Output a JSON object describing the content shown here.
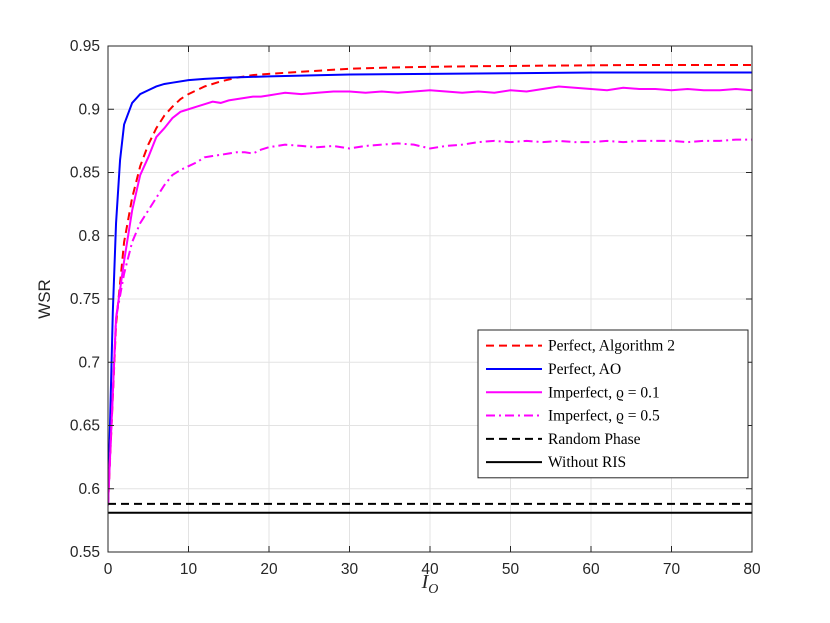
{
  "chart_data": {
    "type": "line",
    "xlabel": "I",
    "xlabel_subscript": "O",
    "ylabel": "WSR",
    "xlim": [
      0,
      80
    ],
    "ylim": [
      0.55,
      0.95
    ],
    "xticks": [
      0,
      10,
      20,
      30,
      40,
      50,
      60,
      70,
      80
    ],
    "yticks": [
      0.55,
      0.6,
      0.65,
      0.7,
      0.75,
      0.8,
      0.85,
      0.9,
      0.95
    ],
    "xtick_labels": [
      "0",
      "10",
      "20",
      "30",
      "40",
      "50",
      "60",
      "70",
      "80"
    ],
    "ytick_labels": [
      "0.55",
      "0.6",
      "0.65",
      "0.7",
      "0.75",
      "0.8",
      "0.85",
      "0.9",
      "0.95"
    ],
    "grid": true,
    "legend_position": "bottom-right",
    "series": [
      {
        "name": "Perfect, Algorithm 2",
        "color": "#ff0000",
        "dash": "dashed",
        "x": [
          0,
          1,
          2,
          3,
          4,
          5,
          6,
          7,
          8,
          9,
          10,
          12,
          14,
          16,
          18,
          20,
          25,
          30,
          35,
          40,
          45,
          50,
          55,
          60,
          65,
          70,
          75,
          80
        ],
        "y": [
          0.587,
          0.73,
          0.795,
          0.83,
          0.855,
          0.872,
          0.885,
          0.895,
          0.902,
          0.908,
          0.912,
          0.918,
          0.922,
          0.925,
          0.927,
          0.928,
          0.93,
          0.932,
          0.933,
          0.9335,
          0.934,
          0.9342,
          0.9345,
          0.9347,
          0.935,
          0.935,
          0.935,
          0.935
        ]
      },
      {
        "name": "Perfect, AO",
        "color": "#0000ff",
        "dash": "solid",
        "x": [
          0,
          0.6,
          1,
          1.5,
          2,
          3,
          4,
          5,
          6,
          7,
          8,
          10,
          12,
          15,
          20,
          30,
          40,
          50,
          60,
          70,
          80
        ],
        "y": [
          0.587,
          0.74,
          0.81,
          0.86,
          0.888,
          0.905,
          0.912,
          0.915,
          0.918,
          0.92,
          0.921,
          0.923,
          0.924,
          0.925,
          0.926,
          0.9275,
          0.928,
          0.9285,
          0.929,
          0.929,
          0.929
        ]
      },
      {
        "name": "Imperfect, ϱ = 0.1",
        "color": "#ff00ff",
        "dash": "solid",
        "x": [
          0,
          1,
          2,
          3,
          4,
          5,
          6,
          7,
          8,
          9,
          10,
          11,
          12,
          13,
          14,
          15,
          16,
          17,
          18,
          19,
          20,
          21,
          22,
          24,
          26,
          28,
          30,
          32,
          34,
          36,
          38,
          40,
          42,
          44,
          46,
          48,
          50,
          52,
          54,
          56,
          58,
          60,
          62,
          64,
          66,
          68,
          70,
          72,
          74,
          76,
          78,
          80
        ],
        "y": [
          0.587,
          0.735,
          0.78,
          0.82,
          0.848,
          0.862,
          0.878,
          0.885,
          0.893,
          0.898,
          0.9,
          0.902,
          0.904,
          0.906,
          0.905,
          0.907,
          0.908,
          0.909,
          0.91,
          0.91,
          0.911,
          0.912,
          0.913,
          0.912,
          0.913,
          0.914,
          0.914,
          0.913,
          0.914,
          0.913,
          0.914,
          0.915,
          0.914,
          0.913,
          0.914,
          0.913,
          0.915,
          0.914,
          0.916,
          0.918,
          0.917,
          0.916,
          0.915,
          0.917,
          0.916,
          0.916,
          0.915,
          0.916,
          0.915,
          0.915,
          0.916,
          0.915
        ]
      },
      {
        "name": "Imperfect, ϱ = 0.5",
        "color": "#ff00ff",
        "dash": "dashdot",
        "x": [
          0,
          1,
          2,
          3,
          4,
          5,
          6,
          7,
          8,
          9,
          10,
          11,
          12,
          13,
          14,
          15,
          16,
          17,
          18,
          19,
          20,
          21,
          22,
          24,
          26,
          28,
          30,
          32,
          34,
          36,
          38,
          40,
          42,
          44,
          46,
          48,
          50,
          52,
          54,
          56,
          58,
          60,
          62,
          64,
          66,
          68,
          70,
          72,
          74,
          76,
          78,
          80
        ],
        "y": [
          0.587,
          0.735,
          0.77,
          0.795,
          0.81,
          0.82,
          0.83,
          0.84,
          0.848,
          0.852,
          0.855,
          0.858,
          0.862,
          0.863,
          0.864,
          0.865,
          0.866,
          0.866,
          0.865,
          0.868,
          0.87,
          0.871,
          0.872,
          0.871,
          0.87,
          0.871,
          0.869,
          0.871,
          0.872,
          0.873,
          0.872,
          0.869,
          0.871,
          0.872,
          0.874,
          0.875,
          0.874,
          0.875,
          0.874,
          0.875,
          0.874,
          0.874,
          0.875,
          0.874,
          0.875,
          0.875,
          0.875,
          0.874,
          0.875,
          0.875,
          0.876,
          0.876
        ]
      },
      {
        "name": "Random Phase",
        "color": "#000000",
        "dash": "dashed",
        "x": [
          0,
          80
        ],
        "y": [
          0.588,
          0.588
        ]
      },
      {
        "name": "Without RIS",
        "color": "#000000",
        "dash": "solid",
        "x": [
          0,
          80
        ],
        "y": [
          0.581,
          0.581
        ]
      }
    ]
  }
}
